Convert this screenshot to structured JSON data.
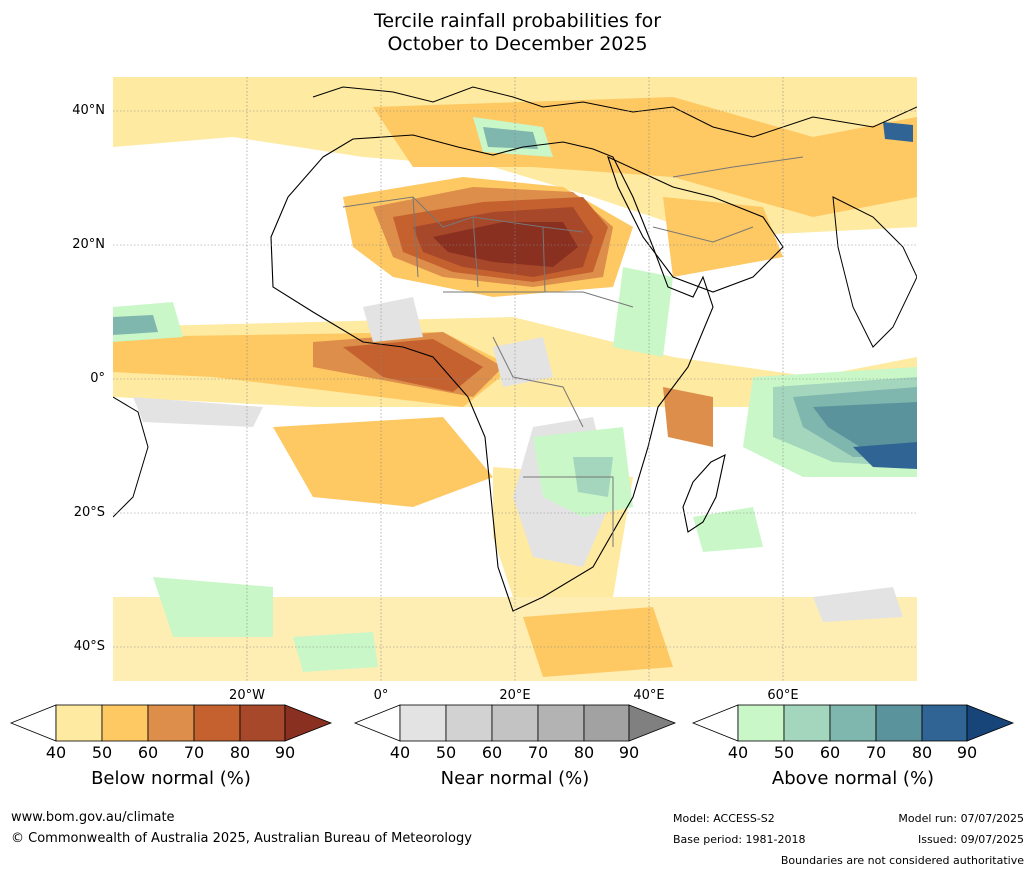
{
  "title": {
    "line1": "Tercile rainfall probabilities for",
    "line2": "October to December 2025"
  },
  "map": {
    "lat_labels": [
      "40°N",
      "20°N",
      "0°",
      "20°S",
      "40°S"
    ],
    "lon_labels": [
      "20°W",
      "0°",
      "20°E",
      "40°E",
      "60°E"
    ],
    "extent": {
      "lon_min": -30,
      "lon_max": 90,
      "lat_min": -45,
      "lat_max": 45
    }
  },
  "colorbars": {
    "ticks": [
      "40",
      "50",
      "60",
      "70",
      "80",
      "90"
    ],
    "below": {
      "title": "Below normal (%)",
      "colors": [
        "#ffffff",
        "#feeaa0",
        "#fec863",
        "#dd8e4a",
        "#c4612f",
        "#a8482a",
        "#8a3020"
      ]
    },
    "near": {
      "title": "Near normal (%)",
      "colors": [
        "#ffffff",
        "#e3e3e3",
        "#d2d2d2",
        "#c3c3c3",
        "#b3b3b3",
        "#a2a2a2",
        "#808080"
      ]
    },
    "above": {
      "title": "Above normal (%)",
      "colors": [
        "#ffffff",
        "#c9f7c8",
        "#a3d6bd",
        "#7fb6ae",
        "#5b939d",
        "#2f6494",
        "#17457a"
      ]
    }
  },
  "footer": {
    "url": "www.bom.gov.au/climate",
    "copyright": "© Commonwealth of Australia 2025, Australian Bureau of Meteorology",
    "model": "Model: ACCESS-S2",
    "base_period": "Base period: 1981-2018",
    "model_run": "Model run: 07/07/2025",
    "issued": "Issued: 09/07/2025",
    "disclaimer": "Boundaries are not considered authoritative"
  }
}
